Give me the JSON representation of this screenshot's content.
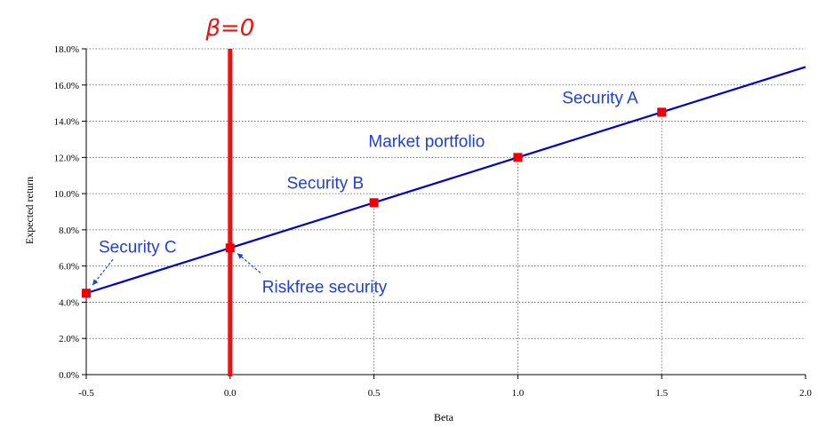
{
  "chart_data": {
    "type": "line",
    "title": "",
    "xlabel": "Beta",
    "ylabel": "Expected return",
    "xlim": [
      -0.5,
      2.0
    ],
    "ylim": [
      0.0,
      18.0
    ],
    "x_ticks": [
      -0.5,
      0.0,
      0.5,
      1.0,
      1.5,
      2.0
    ],
    "x_tick_labels": [
      "-0.5",
      "0.0",
      "0.5",
      "1.0",
      "1.5",
      "2.0"
    ],
    "y_ticks": [
      0,
      2,
      4,
      6,
      8,
      10,
      12,
      14,
      16,
      18
    ],
    "y_tick_labels": [
      "0.0%",
      "2.0%",
      "4.0%",
      "6.0%",
      "8.0%",
      "10.0%",
      "12.0%",
      "14.0%",
      "16.0%",
      "18.0%"
    ],
    "grid": "horizontal-dotted",
    "line": {
      "x": [
        -0.5,
        2.0
      ],
      "y": [
        4.5,
        17.0
      ],
      "color": "#0000cc"
    },
    "points": [
      {
        "label": "Security C",
        "x": -0.5,
        "y": 4.5
      },
      {
        "label": "Riskfree security",
        "x": 0.0,
        "y": 7.0
      },
      {
        "label": "Security B",
        "x": 0.5,
        "y": 9.5
      },
      {
        "label": "Market portfolio",
        "x": 1.0,
        "y": 12.0
      },
      {
        "label": "Security A",
        "x": 1.5,
        "y": 14.5
      }
    ],
    "marker_color": "#ee0000",
    "annotation_color": "#1f3fd8",
    "vertical_line": {
      "x": 0.0,
      "label": "β=0",
      "color": "#ee1111"
    }
  }
}
